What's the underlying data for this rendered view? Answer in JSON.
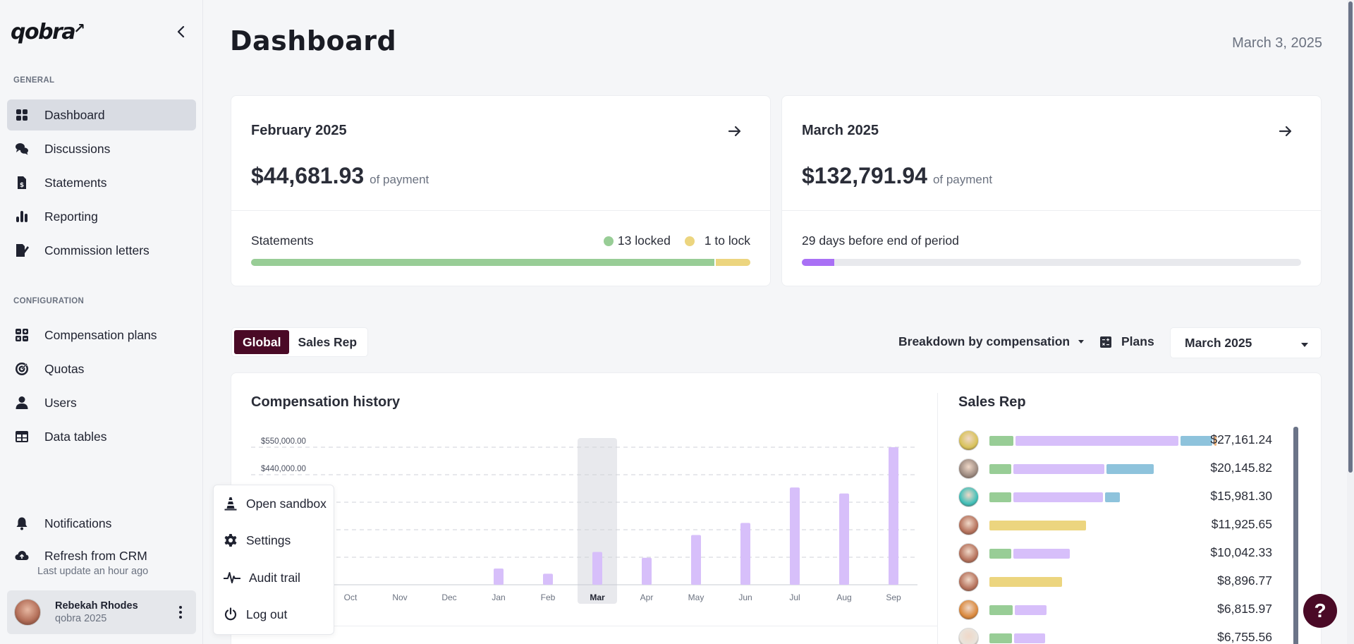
{
  "app": {
    "logo": "qobra"
  },
  "sidebar": {
    "sections": [
      {
        "title": "GENERAL",
        "items": [
          {
            "label": "Dashboard",
            "icon": "grid-icon",
            "active": true
          },
          {
            "label": "Discussions",
            "icon": "chat-bubbles-icon"
          },
          {
            "label": "Statements",
            "icon": "dollar-document-icon"
          },
          {
            "label": "Reporting",
            "icon": "bar-chart-icon"
          },
          {
            "label": "Commission letters",
            "icon": "signature-document-icon"
          }
        ]
      },
      {
        "title": "CONFIGURATION",
        "items": [
          {
            "label": "Compensation plans",
            "icon": "calculator-icon"
          },
          {
            "label": "Quotas",
            "icon": "target-icon"
          },
          {
            "label": "Users",
            "icon": "user-icon"
          },
          {
            "label": "Data tables",
            "icon": "table-icon"
          }
        ]
      }
    ],
    "notifications": "Notifications",
    "refresh": {
      "label": "Refresh from CRM",
      "sub": "Last update an hour ago"
    },
    "user": {
      "name": "Rebekah Rhodes",
      "org": "qobra 2025"
    }
  },
  "popup_menu": [
    {
      "label": "Open sandbox",
      "icon": "traffic-cone-icon"
    },
    {
      "label": "Settings",
      "icon": "gear-icon"
    },
    {
      "label": "Audit trail",
      "icon": "pulse-icon"
    },
    {
      "label": "Log out",
      "icon": "power-icon"
    }
  ],
  "header": {
    "title": "Dashboard",
    "date": "March 3, 2025"
  },
  "period_cards": [
    {
      "title": "February 2025",
      "amount": "$44,681.93",
      "amount_suffix": "of payment",
      "footer_label": "Statements",
      "legend": [
        {
          "label": "13 locked",
          "color": "#98cd96",
          "count": 13
        },
        {
          "label": "1 to lock",
          "color": "#ecd57f",
          "count": 1
        }
      ]
    },
    {
      "title": "March 2025",
      "amount": "$132,791.94",
      "amount_suffix": "of payment",
      "footer_label": "29 days before end of period",
      "progress": 0.065,
      "progress_color": "#a970f5"
    }
  ],
  "controls": {
    "tabs": [
      {
        "label": "Global",
        "active": true
      },
      {
        "label": "Sales Rep"
      }
    ],
    "breakdown": "Breakdown by compensation",
    "plans": "Plans",
    "month": "March 2025"
  },
  "compensation_history": {
    "title": "Compensation history"
  },
  "chart_data": {
    "type": "bar",
    "title": "Compensation history",
    "categories": [
      "Oct",
      "Nov",
      "Dec",
      "Jan",
      "Feb",
      "Mar",
      "Apr",
      "May",
      "Jun",
      "Jul",
      "Aug",
      "Sep"
    ],
    "values": [
      0,
      0,
      0,
      65000,
      44000,
      131000,
      108000,
      199000,
      247000,
      389000,
      365000,
      550000
    ],
    "highlighted": "Mar",
    "y_tick_labels_visible": [
      "$550,000.00",
      "$440,000.00"
    ],
    "y_ticks": [
      110000,
      220000,
      330000,
      440000,
      550000
    ],
    "ylim": [
      0,
      550000
    ],
    "grid": true,
    "bar_color": "#d7bffa",
    "xlabel": "",
    "ylabel": ""
  },
  "sales_rep": {
    "title": "Sales Rep",
    "segment_colors": {
      "green": "#98cd96",
      "purple": "#d7bffa",
      "blue": "#8ec3dc",
      "orange": "#f1b57c",
      "yellow": "#ecd57f"
    },
    "rows": [
      {
        "total": "$27,161.24",
        "avatar": "#d8c25a",
        "segments": [
          {
            "c": "green",
            "v": 2870
          },
          {
            "c": "purple",
            "v": 19720
          },
          {
            "c": "blue",
            "v": 3840
          },
          {
            "c": "orange",
            "v": 260
          }
        ]
      },
      {
        "total": "$20,145.82",
        "avatar": "#9c8a80",
        "segments": [
          {
            "c": "green",
            "v": 2630
          },
          {
            "c": "purple",
            "v": 11040
          },
          {
            "c": "blue",
            "v": 5690
          }
        ]
      },
      {
        "total": "$15,981.30",
        "avatar": "#3fbfb8",
        "segments": [
          {
            "c": "green",
            "v": 2630
          },
          {
            "c": "purple",
            "v": 10870
          },
          {
            "c": "blue",
            "v": 1780
          }
        ]
      },
      {
        "total": "$11,925.65",
        "avatar": "#b5715b",
        "segments": [
          {
            "c": "yellow",
            "v": 11720
          }
        ]
      },
      {
        "total": "$10,042.33",
        "avatar": "#b5715b",
        "segments": [
          {
            "c": "green",
            "v": 2630
          },
          {
            "c": "purple",
            "v": 6880
          }
        ]
      },
      {
        "total": "$8,896.77",
        "avatar": "#b5715b",
        "segments": [
          {
            "c": "yellow",
            "v": 8830
          }
        ]
      },
      {
        "total": "$6,815.97",
        "avatar": "#d9883c",
        "segments": [
          {
            "c": "green",
            "v": 2800
          },
          {
            "c": "purple",
            "v": 3820
          }
        ]
      },
      {
        "total": "$6,755.56",
        "avatar": "#e9e4dc",
        "segments": [
          {
            "c": "green",
            "v": 2720
          },
          {
            "c": "purple",
            "v": 3740
          }
        ]
      }
    ]
  },
  "help": {
    "label": "?"
  }
}
